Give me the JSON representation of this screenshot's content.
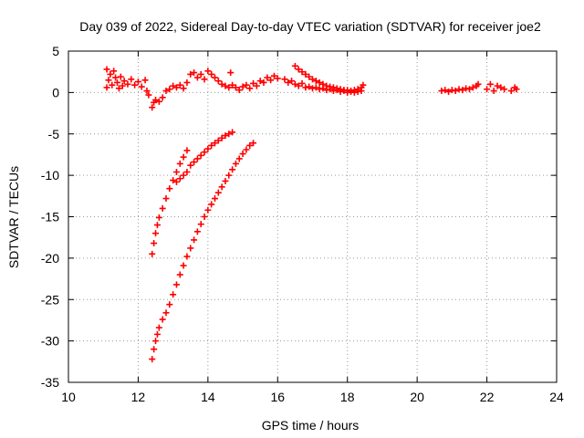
{
  "chart_data": {
    "type": "scatter",
    "title": "Day 039 of 2022, Sidereal Day-to-day VTEC variation (SDTVAR) for receiver joe2",
    "xlabel": "GPS time / hours",
    "ylabel": "SDTVAR / TECUs",
    "xlim": [
      10,
      24
    ],
    "ylim": [
      -35,
      5
    ],
    "xticks": [
      10,
      12,
      14,
      16,
      18,
      20,
      22,
      24
    ],
    "yticks": [
      -35,
      -30,
      -25,
      -20,
      -15,
      -10,
      -5,
      0,
      5
    ],
    "grid": true,
    "legend": "none",
    "marker": "plus",
    "color": "#ff0000",
    "series": [
      {
        "points": [
          [
            11.1,
            0.6
          ],
          [
            11.1,
            2.8
          ],
          [
            11.15,
            1.5
          ],
          [
            11.2,
            2.2
          ],
          [
            11.25,
            0.9
          ],
          [
            11.3,
            2.6
          ],
          [
            11.35,
            1.8
          ],
          [
            11.4,
            1.2
          ],
          [
            11.45,
            0.5
          ],
          [
            11.5,
            1.9
          ],
          [
            11.55,
            0.8
          ],
          [
            11.6,
            1.4
          ],
          [
            11.7,
            1.0
          ],
          [
            11.8,
            1.6
          ],
          [
            11.9,
            0.9
          ],
          [
            12.0,
            1.3
          ],
          [
            12.1,
            0.7
          ],
          [
            12.2,
            1.5
          ],
          [
            12.25,
            0.2
          ],
          [
            12.3,
            -0.3
          ],
          [
            12.4,
            -1.8
          ],
          [
            12.45,
            -1.2
          ],
          [
            12.5,
            -0.9
          ],
          [
            12.6,
            -1.1
          ],
          [
            12.7,
            -0.6
          ],
          [
            12.8,
            0.2
          ],
          [
            12.9,
            0.4
          ],
          [
            13.0,
            0.8
          ],
          [
            13.1,
            0.6
          ],
          [
            13.2,
            0.9
          ],
          [
            13.3,
            0.5
          ],
          [
            13.4,
            1.2
          ],
          [
            13.5,
            2.2
          ],
          [
            13.6,
            2.4
          ],
          [
            13.7,
            1.8
          ],
          [
            13.8,
            2.2
          ],
          [
            13.9,
            1.6
          ],
          [
            14.0,
            2.6
          ],
          [
            14.1,
            2.2
          ],
          [
            14.2,
            1.8
          ],
          [
            14.3,
            1.4
          ],
          [
            14.4,
            1.0
          ],
          [
            14.5,
            0.8
          ],
          [
            14.6,
            0.6
          ],
          [
            14.65,
            2.4
          ],
          [
            14.7,
            0.9
          ],
          [
            14.8,
            0.6
          ],
          [
            14.9,
            0.3
          ],
          [
            15.0,
            0.7
          ],
          [
            15.1,
            0.9
          ],
          [
            15.2,
            0.5
          ],
          [
            15.3,
            1.1
          ],
          [
            15.4,
            0.8
          ],
          [
            15.5,
            1.4
          ],
          [
            15.6,
            1.2
          ],
          [
            15.7,
            1.8
          ],
          [
            15.8,
            1.5
          ],
          [
            15.9,
            2.0
          ],
          [
            16.0,
            1.7
          ],
          [
            16.2,
            1.6
          ],
          [
            16.3,
            1.2
          ],
          [
            16.4,
            1.4
          ],
          [
            16.5,
            1.0
          ],
          [
            16.6,
            0.8
          ],
          [
            16.7,
            1.1
          ],
          [
            16.8,
            0.6
          ],
          [
            16.9,
            0.7
          ],
          [
            17.0,
            0.5
          ],
          [
            17.1,
            0.6
          ],
          [
            17.2,
            0.4
          ],
          [
            17.3,
            0.5
          ],
          [
            17.4,
            0.3
          ],
          [
            17.5,
            0.4
          ],
          [
            17.6,
            0.2
          ],
          [
            17.7,
            0.3
          ],
          [
            17.8,
            0.1
          ],
          [
            17.9,
            0.2
          ],
          [
            18.0,
            0.0
          ],
          [
            18.1,
            0.1
          ],
          [
            18.2,
            0.0
          ],
          [
            18.3,
            0.1
          ],
          [
            18.4,
            0.2
          ],
          [
            16.5,
            3.2
          ],
          [
            16.6,
            2.8
          ],
          [
            16.7,
            2.5
          ],
          [
            16.8,
            2.2
          ],
          [
            16.9,
            1.9
          ],
          [
            17.0,
            1.6
          ],
          [
            17.1,
            1.4
          ],
          [
            17.2,
            1.2
          ],
          [
            17.3,
            1.0
          ],
          [
            17.4,
            0.8
          ],
          [
            17.5,
            0.7
          ],
          [
            17.6,
            0.6
          ],
          [
            17.7,
            0.5
          ],
          [
            17.8,
            0.4
          ],
          [
            17.9,
            0.3
          ],
          [
            18.0,
            0.3
          ],
          [
            18.1,
            0.2
          ],
          [
            18.2,
            0.3
          ],
          [
            18.3,
            0.4
          ],
          [
            18.4,
            0.6
          ],
          [
            18.45,
            0.9
          ],
          [
            20.7,
            0.2
          ],
          [
            20.8,
            0.3
          ],
          [
            20.9,
            0.1
          ],
          [
            21.0,
            0.3
          ],
          [
            21.1,
            0.2
          ],
          [
            21.2,
            0.4
          ],
          [
            21.3,
            0.3
          ],
          [
            21.4,
            0.5
          ],
          [
            21.5,
            0.4
          ],
          [
            21.6,
            0.6
          ],
          [
            21.7,
            0.8
          ],
          [
            21.75,
            1.0
          ],
          [
            22.0,
            0.4
          ],
          [
            22.1,
            1.0
          ],
          [
            22.2,
            0.2
          ],
          [
            22.3,
            0.8
          ],
          [
            22.4,
            0.6
          ],
          [
            22.5,
            0.4
          ],
          [
            22.7,
            0.2
          ],
          [
            22.8,
            0.6
          ],
          [
            22.85,
            0.4
          ]
        ]
      },
      {
        "points": [
          [
            12.4,
            -19.5
          ],
          [
            12.45,
            -18.2
          ],
          [
            12.5,
            -17.0
          ],
          [
            12.55,
            -16.0
          ],
          [
            12.6,
            -15.1
          ],
          [
            12.7,
            -14.0
          ],
          [
            12.8,
            -12.8
          ],
          [
            12.9,
            -11.6
          ],
          [
            13.0,
            -10.6
          ],
          [
            13.1,
            -9.6
          ],
          [
            13.2,
            -8.6
          ],
          [
            13.3,
            -7.8
          ],
          [
            13.4,
            -7.0
          ],
          [
            13.1,
            -10.8
          ],
          [
            13.2,
            -10.4
          ],
          [
            13.3,
            -10.0
          ],
          [
            13.4,
            -9.6
          ],
          [
            13.5,
            -8.8
          ],
          [
            13.6,
            -8.4
          ],
          [
            13.7,
            -8.0
          ],
          [
            13.8,
            -7.6
          ],
          [
            13.9,
            -7.2
          ],
          [
            14.0,
            -6.8
          ],
          [
            14.1,
            -6.4
          ],
          [
            14.2,
            -6.1
          ],
          [
            14.3,
            -5.8
          ],
          [
            14.4,
            -5.5
          ],
          [
            14.5,
            -5.2
          ],
          [
            14.6,
            -5.0
          ],
          [
            14.7,
            -4.8
          ]
        ]
      },
      {
        "points": [
          [
            12.4,
            -32.2
          ],
          [
            12.45,
            -31.0
          ],
          [
            12.5,
            -30.0
          ],
          [
            12.55,
            -29.2
          ],
          [
            12.6,
            -28.4
          ],
          [
            12.7,
            -27.4
          ],
          [
            12.8,
            -26.6
          ],
          [
            12.9,
            -25.6
          ],
          [
            13.0,
            -24.4
          ],
          [
            13.1,
            -23.2
          ],
          [
            13.2,
            -22.0
          ],
          [
            13.3,
            -20.9
          ],
          [
            13.4,
            -19.8
          ],
          [
            13.5,
            -18.8
          ],
          [
            13.6,
            -17.8
          ],
          [
            13.7,
            -16.8
          ],
          [
            13.8,
            -15.9
          ],
          [
            13.9,
            -15.0
          ],
          [
            14.0,
            -14.2
          ],
          [
            14.1,
            -13.5
          ],
          [
            14.2,
            -12.8
          ],
          [
            14.3,
            -12.1
          ],
          [
            14.4,
            -11.4
          ],
          [
            14.5,
            -10.7
          ],
          [
            14.6,
            -10.0
          ],
          [
            14.7,
            -9.3
          ],
          [
            14.8,
            -8.6
          ],
          [
            14.9,
            -8.0
          ],
          [
            15.0,
            -7.4
          ],
          [
            15.1,
            -6.9
          ],
          [
            15.2,
            -6.4
          ],
          [
            15.3,
            -6.1
          ]
        ]
      }
    ]
  }
}
